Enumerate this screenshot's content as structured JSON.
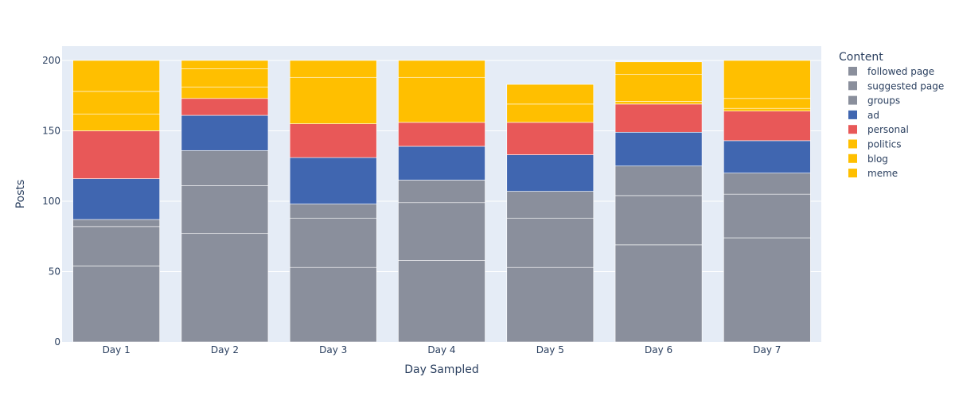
{
  "chart_data": {
    "type": "bar",
    "stacked": true,
    "categories": [
      "Day 1",
      "Day 2",
      "Day 3",
      "Day 4",
      "Day 5",
      "Day 6",
      "Day 7"
    ],
    "xlabel": "Day Sampled",
    "ylabel": "Posts",
    "ylim": [
      0,
      200
    ],
    "yticks": [
      0,
      50,
      100,
      150,
      200
    ],
    "grid": true,
    "legend": {
      "title": "Content",
      "placement": "right"
    },
    "series": [
      {
        "name": "followed page",
        "color": "#8a8f9c",
        "values": [
          54,
          77,
          53,
          58,
          53,
          69,
          74
        ]
      },
      {
        "name": "suggested page",
        "color": "#8a8f9c",
        "values": [
          28,
          34,
          35,
          41,
          35,
          35,
          31
        ]
      },
      {
        "name": "groups",
        "color": "#8a8f9c",
        "values": [
          5,
          25,
          10,
          16,
          19,
          21,
          15
        ]
      },
      {
        "name": "ad",
        "color": "#4066b0",
        "values": [
          29,
          25,
          33,
          24,
          26,
          24,
          23
        ]
      },
      {
        "name": "personal",
        "color": "#e85858",
        "values": [
          34,
          12,
          24,
          17,
          23,
          20,
          21
        ]
      },
      {
        "name": "politics",
        "color": "#ffbf00",
        "values": [
          12,
          8,
          0,
          0,
          0,
          2,
          2
        ]
      },
      {
        "name": "blog",
        "color": "#ffbf00",
        "values": [
          16,
          13,
          33,
          32,
          13,
          19,
          7
        ]
      },
      {
        "name": "meme",
        "color": "#ffbf00",
        "values": [
          22,
          6,
          12,
          12,
          14,
          9,
          27
        ]
      }
    ]
  }
}
